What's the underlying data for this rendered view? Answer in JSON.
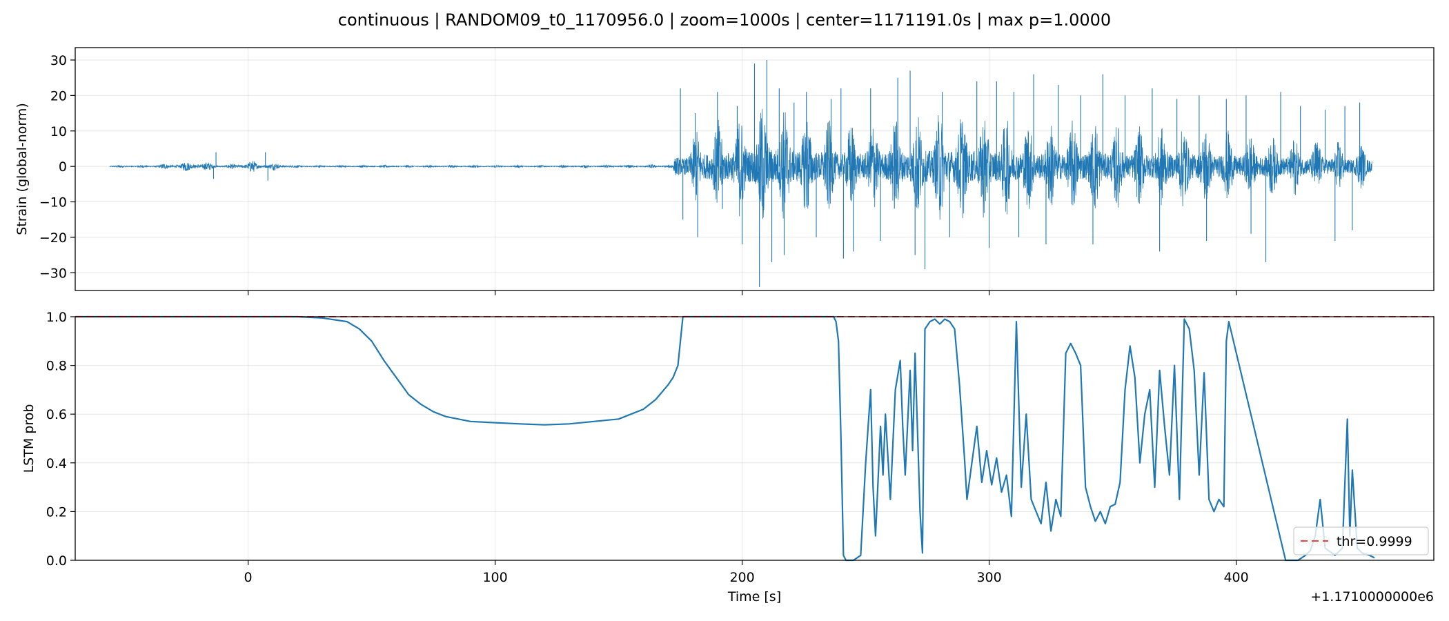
{
  "figure": {
    "suptitle": "continuous | RANDOM09_t0_1170956.0 | zoom=1000s | center=1171191.0s | max p=1.0000",
    "xlabel": "Time [s]",
    "x_offset_label": "+1.1710000000e6"
  },
  "chart_data": [
    {
      "type": "line",
      "title": "",
      "xlabel": "",
      "ylabel": "Strain (global-norm)",
      "xlim": [
        1170930,
        1171480
      ],
      "ylim": [
        -35,
        33.5
      ],
      "xticks": [
        1171000,
        1171100,
        1171200,
        1171300,
        1171400
      ],
      "xtick_labels": [],
      "yticks": [
        -30,
        -20,
        -10,
        0,
        10,
        20,
        30
      ],
      "ytick_labels": [
        "−30",
        "−20",
        "−10",
        "0",
        "10",
        "20",
        "30"
      ],
      "grid": true,
      "color": "#1f77b4",
      "series": [
        {
          "envelope_x": [
            1170930,
            1170944,
            1170960,
            1170980,
            1170990,
            1171000,
            1171020,
            1171050,
            1171080,
            1171120,
            1171160,
            1171172,
            1171175,
            1171185,
            1171200,
            1171210,
            1171220,
            1171240,
            1171260,
            1171280,
            1171300,
            1171320,
            1171340,
            1171360,
            1171380,
            1171400,
            1171420,
            1171440,
            1171455
          ],
          "envelope_amp": [
            0,
            0.3,
            0.3,
            1.5,
            0.3,
            1.5,
            0.3,
            0.3,
            0.3,
            0.3,
            0.4,
            0.6,
            6,
            10,
            12,
            15,
            13,
            10,
            11,
            13,
            12,
            10,
            11,
            9,
            10,
            8,
            7,
            6,
            5
          ],
          "spikes": [
            [
              1170987,
              4
            ],
            [
              1170986,
              -3.5
            ],
            [
              1171007,
              4
            ],
            [
              1171008,
              -4
            ],
            [
              1171175,
              22
            ],
            [
              1171176,
              -15
            ],
            [
              1171181,
              15
            ],
            [
              1171182,
              -20
            ],
            [
              1171190,
              21
            ],
            [
              1171192,
              -12
            ],
            [
              1171198,
              17
            ],
            [
              1171200,
              -22
            ],
            [
              1171205,
              29
            ],
            [
              1171207,
              -34
            ],
            [
              1171210,
              30
            ],
            [
              1171212,
              -27
            ],
            [
              1171215,
              22
            ],
            [
              1171217,
              -25
            ],
            [
              1171221,
              18
            ],
            [
              1171226,
              21
            ],
            [
              1171230,
              -20
            ],
            [
              1171236,
              19
            ],
            [
              1171240,
              22
            ],
            [
              1171241,
              -26
            ],
            [
              1171245,
              -24
            ],
            [
              1171252,
              22
            ],
            [
              1171256,
              -21
            ],
            [
              1171263,
              25
            ],
            [
              1171268,
              27
            ],
            [
              1171270,
              -25
            ],
            [
              1171274,
              -29
            ],
            [
              1171281,
              21
            ],
            [
              1171284,
              -20
            ],
            [
              1171295,
              24
            ],
            [
              1171300,
              -23
            ],
            [
              1171303,
              24
            ],
            [
              1171310,
              21
            ],
            [
              1171312,
              -20
            ],
            [
              1171318,
              26
            ],
            [
              1171323,
              -22
            ],
            [
              1171328,
              23
            ],
            [
              1171337,
              20
            ],
            [
              1171342,
              -22
            ],
            [
              1171346,
              26
            ],
            [
              1171355,
              20
            ],
            [
              1171366,
              22
            ],
            [
              1171369,
              -24
            ],
            [
              1171376,
              19
            ],
            [
              1171385,
              20
            ],
            [
              1171388,
              -21
            ],
            [
              1171396,
              19
            ],
            [
              1171404,
              20
            ],
            [
              1171406,
              -19
            ],
            [
              1171412,
              -27
            ],
            [
              1171418,
              21
            ],
            [
              1171426,
              17
            ],
            [
              1171436,
              16
            ],
            [
              1171440,
              -21
            ],
            [
              1171444,
              17
            ],
            [
              1171447,
              -18
            ],
            [
              1171450,
              18
            ]
          ]
        }
      ]
    },
    {
      "type": "line",
      "title": "",
      "xlabel": "Time [s]",
      "ylabel": "LSTM prob",
      "xlim": [
        1170930,
        1171480
      ],
      "ylim": [
        0,
        1.0
      ],
      "xticks": [
        1171000,
        1171100,
        1171200,
        1171300,
        1171400
      ],
      "xtick_labels": [
        "0",
        "100",
        "200",
        "300",
        "400"
      ],
      "yticks": [
        0,
        0.2,
        0.4,
        0.6,
        0.8,
        1.0
      ],
      "ytick_labels": [
        "0.0",
        "0.2",
        "0.4",
        "0.6",
        "0.8",
        "1.0"
      ],
      "grid": true,
      "threshold": {
        "value": 0.9999,
        "label": "thr=0.9999",
        "color": "#ff0000"
      },
      "legend": {
        "position": "lower right"
      },
      "color": "#1f77b4",
      "series": [
        {
          "x": [
            1170930,
            1170990,
            1171020,
            1171030,
            1171040,
            1171045,
            1171050,
            1171055,
            1171060,
            1171065,
            1171070,
            1171075,
            1171080,
            1171090,
            1171100,
            1171110,
            1171120,
            1171130,
            1171140,
            1171150,
            1171155,
            1171160,
            1171165,
            1171170,
            1171172,
            1171174,
            1171176,
            1171200,
            1171237,
            1171238,
            1171239,
            1171240,
            1171241,
            1171242,
            1171243,
            1171245,
            1171248,
            1171250,
            1171252,
            1171253,
            1171254,
            1171256,
            1171257,
            1171258,
            1171260,
            1171262,
            1171264,
            1171265,
            1171266,
            1171268,
            1171269,
            1171270,
            1171272,
            1171273,
            1171274,
            1171276,
            1171278,
            1171280,
            1171282,
            1171284,
            1171286,
            1171288,
            1171290,
            1171291,
            1171293,
            1171295,
            1171297,
            1171299,
            1171301,
            1171303,
            1171305,
            1171307,
            1171309,
            1171311,
            1171313,
            1171315,
            1171317,
            1171319,
            1171321,
            1171323,
            1171325,
            1171327,
            1171329,
            1171331,
            1171333,
            1171335,
            1171337,
            1171339,
            1171341,
            1171343,
            1171345,
            1171347,
            1171349,
            1171351,
            1171353,
            1171355,
            1171357,
            1171359,
            1171361,
            1171363,
            1171365,
            1171367,
            1171369,
            1171371,
            1171373,
            1171375,
            1171377,
            1171379,
            1171381,
            1171383,
            1171385,
            1171387,
            1171389,
            1171391,
            1171393,
            1171395,
            1171396,
            1171397,
            1171420,
            1171425,
            1171428,
            1171430,
            1171432,
            1171434,
            1171436,
            1171440,
            1171443,
            1171445,
            1171446,
            1171447,
            1171449,
            1171451,
            1171454,
            1171456
          ],
          "values": [
            1.0,
            1.0,
            1.0,
            0.995,
            0.98,
            0.95,
            0.9,
            0.82,
            0.75,
            0.68,
            0.64,
            0.61,
            0.59,
            0.57,
            0.565,
            0.56,
            0.556,
            0.56,
            0.57,
            0.58,
            0.6,
            0.62,
            0.66,
            0.72,
            0.75,
            0.8,
            1.0,
            1.0,
            1.0,
            0.98,
            0.9,
            0.5,
            0.02,
            0.0,
            0.0,
            0.0,
            0.02,
            0.4,
            0.7,
            0.3,
            0.1,
            0.55,
            0.35,
            0.6,
            0.25,
            0.7,
            0.82,
            0.55,
            0.35,
            0.78,
            0.45,
            0.85,
            0.2,
            0.03,
            0.95,
            0.98,
            0.99,
            0.97,
            0.99,
            0.98,
            0.95,
            0.72,
            0.42,
            0.25,
            0.4,
            0.55,
            0.32,
            0.45,
            0.31,
            0.42,
            0.28,
            0.35,
            0.18,
            0.98,
            0.3,
            0.6,
            0.25,
            0.2,
            0.15,
            0.32,
            0.12,
            0.25,
            0.18,
            0.85,
            0.89,
            0.85,
            0.8,
            0.3,
            0.22,
            0.16,
            0.2,
            0.15,
            0.22,
            0.23,
            0.32,
            0.7,
            0.88,
            0.75,
            0.4,
            0.6,
            0.7,
            0.3,
            0.78,
            0.55,
            0.35,
            0.8,
            0.25,
            0.99,
            0.95,
            0.78,
            0.35,
            0.77,
            0.25,
            0.2,
            0.25,
            0.22,
            0.9,
            0.98,
            0.0,
            0.0,
            0.02,
            0.04,
            0.1,
            0.25,
            0.05,
            0.02,
            0.05,
            0.58,
            0.1,
            0.37,
            0.05,
            0.03,
            0.02,
            0.01
          ],
          "segments_break": []
        }
      ]
    }
  ]
}
